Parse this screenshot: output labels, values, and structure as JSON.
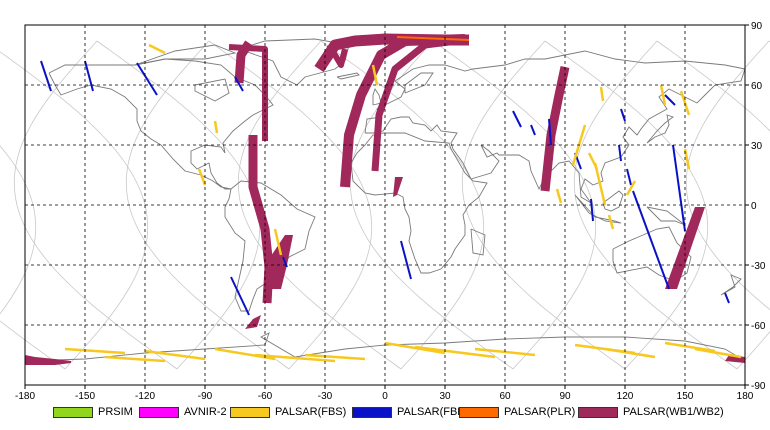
{
  "map": {
    "x_ticks": [
      "-180",
      "-150",
      "-120",
      "-90",
      "-60",
      "-30",
      "0",
      "30",
      "60",
      "90",
      "120",
      "150",
      "180"
    ],
    "y_ticks": [
      "90",
      "60",
      "30",
      "0",
      "-30",
      "-60",
      "-90"
    ],
    "x_range": [
      -180,
      180
    ],
    "y_range": [
      -90,
      90
    ],
    "grid": "dashed",
    "colors": {
      "grid": "#000000",
      "orbits": "#c8c8c8",
      "coast": "#7a7a7a",
      "frame": "#000000"
    }
  },
  "legend": {
    "items": [
      {
        "label": "PRSIM",
        "color": "#8fd61c"
      },
      {
        "label": "AVNIR-2",
        "color": "#ff00ff"
      },
      {
        "label": "PALSAR(FBS)",
        "color": "#f7c81f"
      },
      {
        "label": "PALSAR(FBD)",
        "color": "#0a12c8"
      },
      {
        "label": "PALSAR(PLR)",
        "color": "#ff6a00"
      },
      {
        "label": "PALSAR(WB1/WB2)",
        "color": "#a0285a"
      }
    ]
  }
}
